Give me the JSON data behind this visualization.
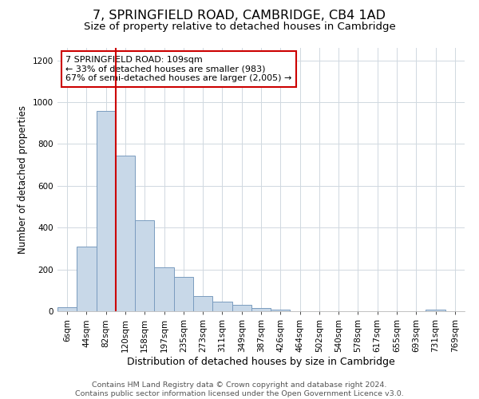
{
  "title": "7, SPRINGFIELD ROAD, CAMBRIDGE, CB4 1AD",
  "subtitle": "Size of property relative to detached houses in Cambridge",
  "xlabel": "Distribution of detached houses by size in Cambridge",
  "ylabel": "Number of detached properties",
  "bin_labels": [
    "6sqm",
    "44sqm",
    "82sqm",
    "120sqm",
    "158sqm",
    "197sqm",
    "235sqm",
    "273sqm",
    "311sqm",
    "349sqm",
    "387sqm",
    "426sqm",
    "464sqm",
    "502sqm",
    "540sqm",
    "578sqm",
    "617sqm",
    "655sqm",
    "693sqm",
    "731sqm",
    "769sqm"
  ],
  "bar_heights": [
    20,
    310,
    960,
    745,
    435,
    210,
    165,
    72,
    47,
    32,
    14,
    8,
    0,
    0,
    0,
    0,
    0,
    0,
    0,
    8,
    0
  ],
  "bar_color": "#c8d8e8",
  "bar_edgecolor": "#7a9cbf",
  "vline_color": "#cc0000",
  "annotation_line1": "7 SPRINGFIELD ROAD: 109sqm",
  "annotation_line2": "← 33% of detached houses are smaller (983)",
  "annotation_line3": "67% of semi-detached houses are larger (2,005) →",
  "annotation_box_edgecolor": "#cc0000",
  "annotation_box_facecolor": "#ffffff",
  "ylim": [
    0,
    1260
  ],
  "yticks": [
    0,
    200,
    400,
    600,
    800,
    1000,
    1200
  ],
  "footer_text": "Contains HM Land Registry data © Crown copyright and database right 2024.\nContains public sector information licensed under the Open Government Licence v3.0.",
  "title_fontsize": 11.5,
  "subtitle_fontsize": 9.5,
  "xlabel_fontsize": 9,
  "ylabel_fontsize": 8.5,
  "tick_fontsize": 7.5,
  "footer_fontsize": 6.8,
  "annotation_fontsize": 8.0
}
